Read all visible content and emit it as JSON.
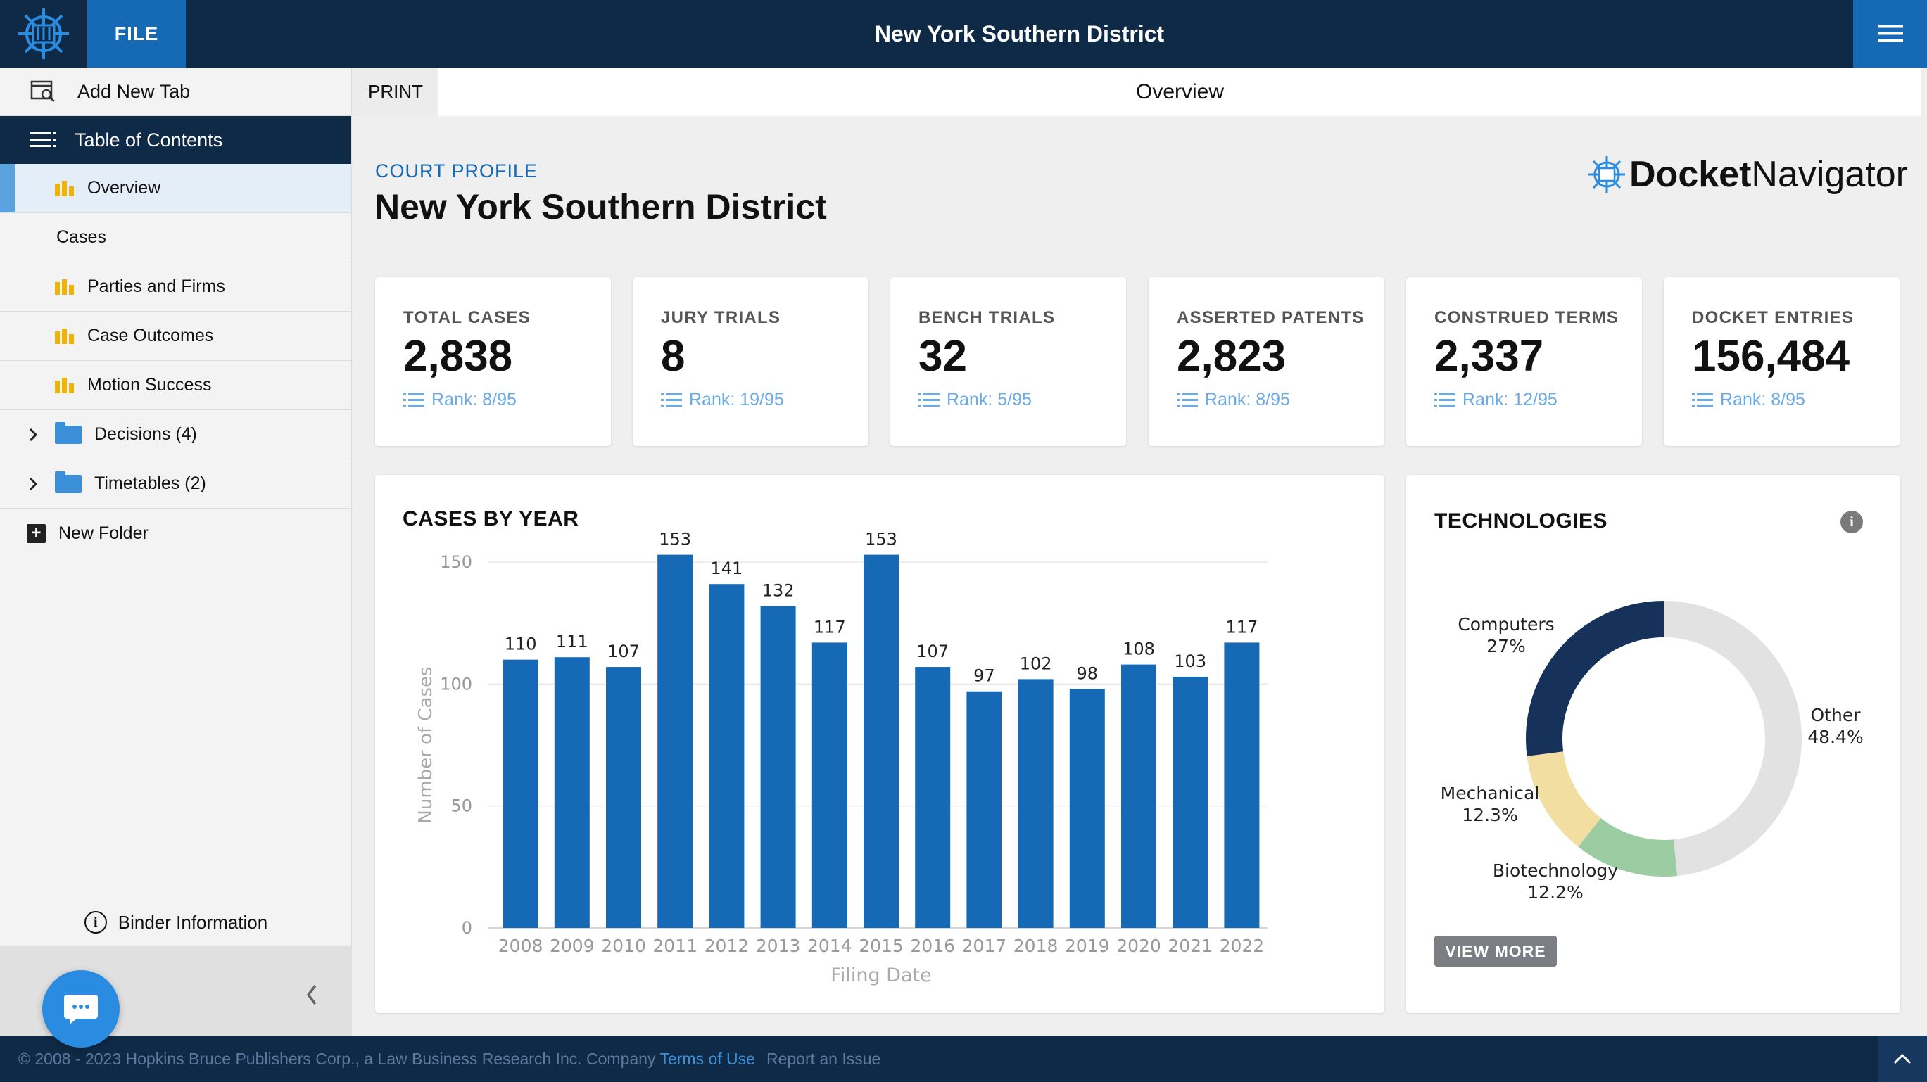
{
  "header": {
    "file_label": "FILE",
    "title": "New York Southern District"
  },
  "sidebar": {
    "add_tab": "Add New Tab",
    "toc_label": "Table of Contents",
    "items": [
      {
        "label": "Overview",
        "icon": "bar-chart-icon"
      },
      {
        "label": "Cases",
        "icon": ""
      },
      {
        "label": "Parties and Firms",
        "icon": "bar-chart-icon"
      },
      {
        "label": "Case Outcomes",
        "icon": "bar-chart-icon"
      },
      {
        "label": "Motion Success",
        "icon": "bar-chart-icon"
      },
      {
        "label": "Decisions (4)",
        "icon": "folder-icon"
      },
      {
        "label": "Timetables (2)",
        "icon": "folder-icon"
      }
    ],
    "new_folder": "New Folder",
    "binder_info": "Binder Information"
  },
  "tabs": {
    "print": "PRINT",
    "active": "Overview"
  },
  "profile": {
    "label": "COURT PROFILE",
    "title": "New York Southern District",
    "brand_bold": "Docket",
    "brand_light": "Navigator"
  },
  "stats": [
    {
      "label": "TOTAL CASES",
      "value": "2,838",
      "rank": "Rank: 8/95"
    },
    {
      "label": "JURY TRIALS",
      "value": "8",
      "rank": "Rank: 19/95"
    },
    {
      "label": "BENCH TRIALS",
      "value": "32",
      "rank": "Rank: 5/95"
    },
    {
      "label": "ASSERTED PATENTS",
      "value": "2,823",
      "rank": "Rank: 8/95"
    },
    {
      "label": "CONSTRUED TERMS",
      "value": "2,337",
      "rank": "Rank: 12/95"
    },
    {
      "label": "DOCKET ENTRIES",
      "value": "156,484",
      "rank": "Rank: 8/95"
    }
  ],
  "chart_data": [
    {
      "type": "bar",
      "title": "CASES BY YEAR",
      "xlabel": "Filing Date",
      "ylabel": "Number of Cases",
      "categories": [
        "2008",
        "2009",
        "2010",
        "2011",
        "2012",
        "2013",
        "2014",
        "2015",
        "2016",
        "2017",
        "2018",
        "2019",
        "2020",
        "2021",
        "2022"
      ],
      "values": [
        110,
        111,
        107,
        153,
        141,
        132,
        117,
        153,
        107,
        97,
        102,
        98,
        108,
        103,
        117
      ],
      "ylim": [
        0,
        155
      ],
      "yticks": [
        0,
        50,
        100,
        150
      ],
      "grid": true,
      "color": "#1669b5"
    },
    {
      "type": "pie",
      "title": "TECHNOLOGIES",
      "donut": true,
      "slices": [
        {
          "label": "Other",
          "value": 48.4,
          "display": "48.4%",
          "color": "#e2e2e2"
        },
        {
          "label": "Biotechnology",
          "value": 12.2,
          "display": "12.2%",
          "color": "#9ccca1"
        },
        {
          "label": "Mechanical",
          "value": 12.3,
          "display": "12.3%",
          "color": "#f2dea0"
        },
        {
          "label": "Computers",
          "value": 27,
          "display": "27%",
          "color": "#17325a"
        }
      ]
    }
  ],
  "technologies": {
    "view_more": "VIEW MORE"
  },
  "footer": {
    "copyright": "© 2008 - 2023 Hopkins Bruce Publishers Corp., a Law Business Research Inc. Company",
    "terms": "Terms of Use",
    "report": "Report an Issue"
  },
  "colors": {
    "navy": "#0f2a47",
    "accent": "#1669b5",
    "rank": "#6aaae6"
  }
}
